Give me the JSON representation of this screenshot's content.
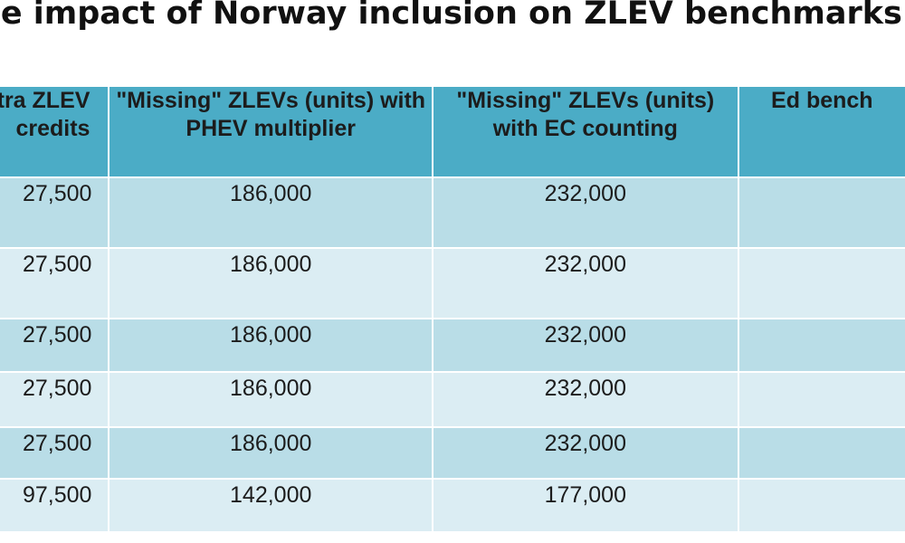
{
  "title": "se impact of Norway inclusion on ZLEV benchmarks",
  "table": {
    "headers": [
      "tra ZLEV credits",
      "\"Missing\" ZLEVs (units) with PHEV multiplier",
      "\"Missing\" ZLEVs (units) with EC counting",
      "Ed bench"
    ],
    "rows": [
      [
        "27,500",
        "186,000",
        "232,000",
        ""
      ],
      [
        "27,500",
        "186,000",
        "232,000",
        ""
      ],
      [
        "27,500",
        "186,000",
        "232,000",
        ""
      ],
      [
        "27,500",
        "186,000",
        "232,000",
        ""
      ],
      [
        "27,500",
        "186,000",
        "232,000",
        ""
      ],
      [
        "97,500",
        "142,000",
        "177,000",
        ""
      ]
    ]
  }
}
